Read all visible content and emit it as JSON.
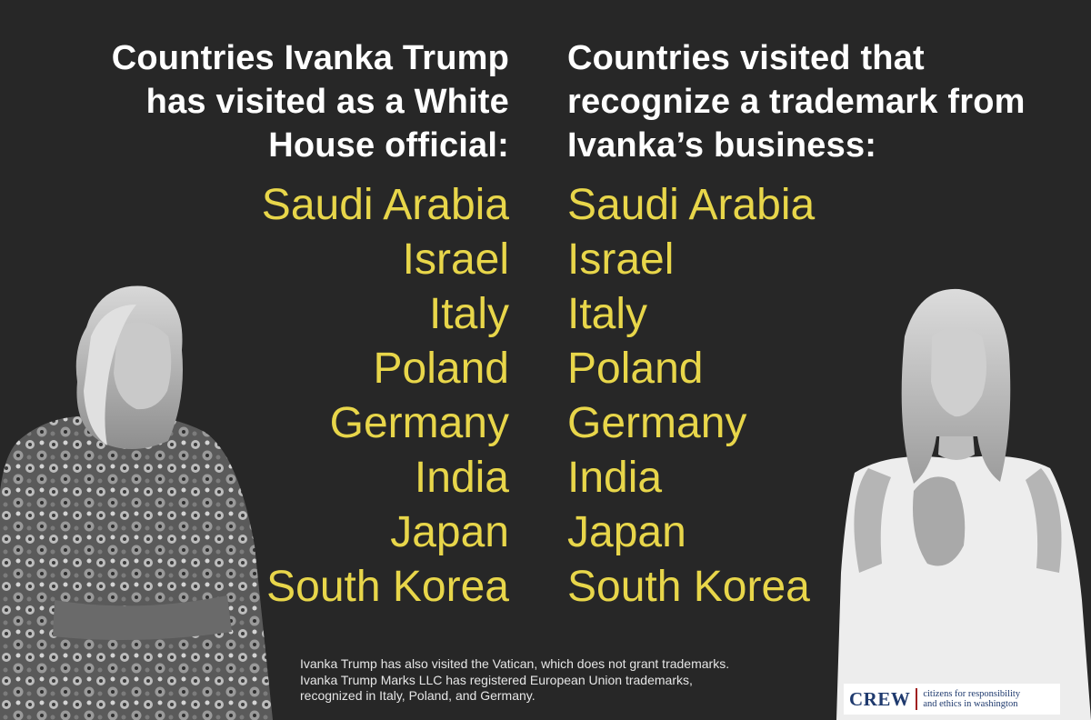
{
  "left_column": {
    "heading_lines": [
      "Countries Ivanka Trump",
      "has visited as a White",
      "House official:"
    ],
    "countries": [
      "Saudi Arabia",
      "Israel",
      "Italy",
      "Poland",
      "Germany",
      "India",
      "Japan",
      "South Korea"
    ]
  },
  "right_column": {
    "heading_lines": [
      "Countries visited that",
      "recognize a trademark from",
      "Ivanka’s business:"
    ],
    "countries": [
      "Saudi Arabia",
      "Israel",
      "Italy",
      "Poland",
      "Germany",
      "India",
      "Japan",
      "South Korea"
    ]
  },
  "footnote_lines": [
    "Ivanka Trump has also visited the Vatican, which does not grant trademarks.",
    "Ivanka Trump Marks LLC has registered European Union trademarks,",
    "recognized in Italy, Poland, and Germany."
  ],
  "logo": {
    "wordmark": "CREW",
    "tagline_lines": [
      "citizens for responsibility",
      "and ethics in washington"
    ]
  },
  "colors": {
    "background": "#272727",
    "heading": "#ffffff",
    "country_text": "#e8d64a",
    "logo_blue": "#1f3a6e",
    "logo_red": "#a02020"
  },
  "images": {
    "left": "person-photo-floral-dress",
    "right": "person-photo-white-dress"
  }
}
